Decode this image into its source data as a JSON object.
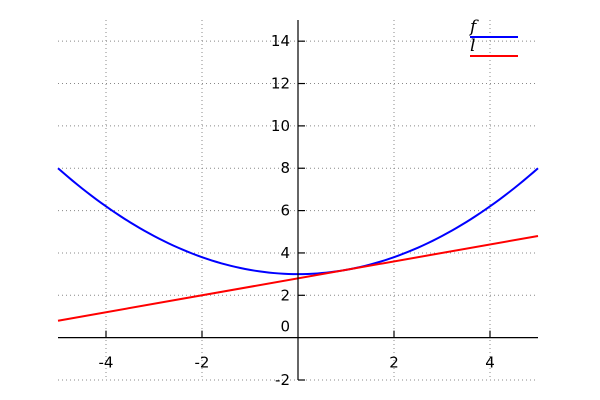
{
  "chart_data": {
    "type": "line",
    "title": "",
    "xlabel": "",
    "ylabel": "",
    "xlim": [
      -5,
      5
    ],
    "ylim": [
      -2,
      15
    ],
    "x_ticks": [
      -4,
      -2,
      2,
      4
    ],
    "y_ticks": [
      -2,
      0,
      2,
      4,
      6,
      8,
      10,
      12,
      14
    ],
    "x_tick_labels": [
      "-4",
      "-2",
      "2",
      "4"
    ],
    "y_tick_labels": [
      "-2",
      "0",
      "2",
      "4",
      "6",
      "8",
      "10",
      "12",
      "14"
    ],
    "grid": true,
    "grid_style": "dotted",
    "legend_position": "top-right",
    "series": [
      {
        "name": "f",
        "color": "#0000ff",
        "expression": "0.2*x^2 + 3",
        "x": [
          -5,
          -4,
          -3,
          -2,
          -1,
          0,
          1,
          2,
          3,
          4,
          5
        ],
        "y": [
          8,
          6.2,
          4.8,
          3.8,
          3.2,
          3,
          3.2,
          3.8,
          4.8,
          6.2,
          8
        ]
      },
      {
        "name": "l",
        "color": "#ff0000",
        "expression": "0.4*x + 2.8",
        "x": [
          -5,
          5
        ],
        "y": [
          0.8,
          4.8
        ]
      }
    ]
  }
}
